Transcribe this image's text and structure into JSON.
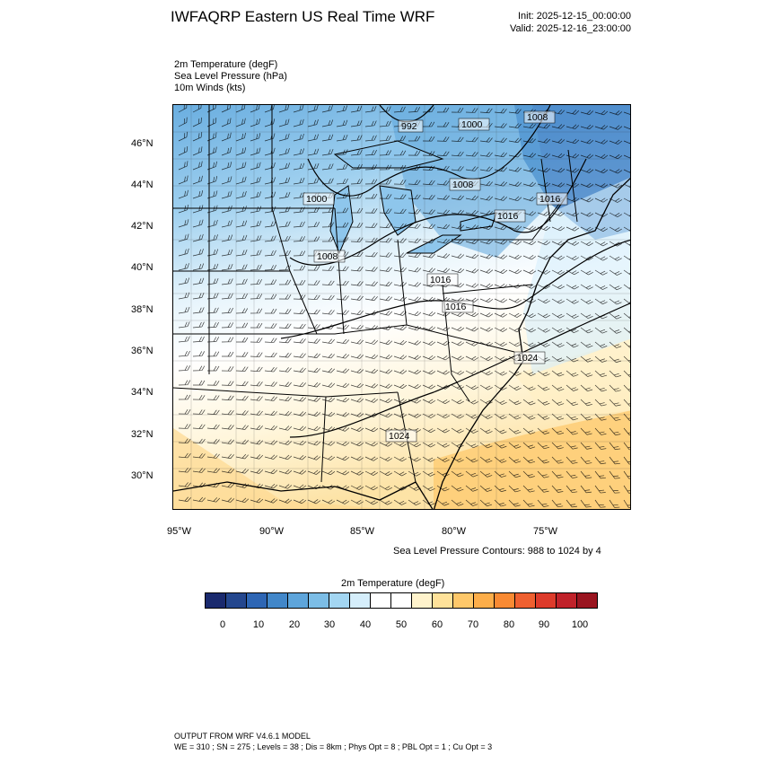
{
  "header": {
    "title": "IWFAQRP Eastern US Real Time WRF",
    "init": "Init: 2025-12-15_00:00:00",
    "valid": "Valid: 2025-12-16_23:00:00"
  },
  "fields": [
    "2m Temperature   (degF)",
    "Sea Level Pressure   (hPa)",
    "10m Winds   (kts)"
  ],
  "map": {
    "lon_labels": [
      "95°W",
      "90°W",
      "85°W",
      "80°W",
      "75°W"
    ],
    "lat_labels": [
      "46°N",
      "44°N",
      "42°N",
      "40°N",
      "38°N",
      "36°N",
      "34°N",
      "32°N",
      "30°N"
    ],
    "pressure_labels": [
      "992",
      "1000",
      "1008",
      "1000",
      "1008",
      "1016",
      "1008",
      "1016",
      "1016",
      "1016",
      "1024",
      "1024"
    ],
    "contour_note": "Sea Level Pressure Contours: 988 to 1024 by 4"
  },
  "legend": {
    "title": "2m Temperature  (degF)",
    "colors": [
      "#1a2a6e",
      "#24478e",
      "#2e66b4",
      "#4287c9",
      "#5ea5db",
      "#7cbde6",
      "#a3d6f2",
      "#d5eefb",
      "#ffffff",
      "#ffffff",
      "#fff3cc",
      "#ffe29a",
      "#fec86a",
      "#fdae4a",
      "#f98a33",
      "#ef6030",
      "#dd3b2b",
      "#c0222a",
      "#9a1520"
    ],
    "labels": [
      "0",
      "10",
      "20",
      "30",
      "40",
      "50",
      "60",
      "70",
      "80",
      "90",
      "100"
    ]
  },
  "footer": {
    "line1": "OUTPUT FROM WRF V4.6.1 MODEL",
    "line2": "WE = 310 ; SN = 275 ; Levels = 38 ; Dis = 8km ; Phys Opt = 8 ; PBL Opt = 1 ; Cu Opt = 3"
  }
}
